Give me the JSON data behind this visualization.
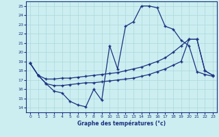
{
  "title": "Graphe des températures (°c)",
  "bg_color": "#cceef0",
  "line_color": "#1a3080",
  "grid_color": "#aad8dc",
  "xlim": [
    -0.5,
    23.5
  ],
  "ylim": [
    13.5,
    25.5
  ],
  "xticks": [
    0,
    1,
    2,
    3,
    4,
    5,
    6,
    7,
    8,
    9,
    10,
    11,
    12,
    13,
    14,
    15,
    16,
    17,
    18,
    19,
    20,
    21,
    22,
    23
  ],
  "yticks": [
    14,
    15,
    16,
    17,
    18,
    19,
    20,
    21,
    22,
    23,
    24,
    25
  ],
  "curve1_x": [
    0,
    1,
    2,
    3,
    4,
    5,
    6,
    7,
    8,
    9,
    10,
    11,
    12,
    13,
    14,
    15,
    16,
    17,
    18,
    19,
    20,
    21,
    22,
    23
  ],
  "curve1_y": [
    18.8,
    17.5,
    16.6,
    15.8,
    15.6,
    14.7,
    14.3,
    14.1,
    16.0,
    14.8,
    20.7,
    18.2,
    22.8,
    23.3,
    25.0,
    25.0,
    24.8,
    22.8,
    22.5,
    21.3,
    20.7,
    17.9,
    17.6,
    17.4
  ],
  "curve2_x": [
    0,
    1,
    2,
    3,
    4,
    5,
    6,
    7,
    8,
    9,
    10,
    11,
    12,
    13,
    14,
    15,
    16,
    17,
    18,
    19,
    20,
    21,
    22,
    23
  ],
  "curve2_y": [
    18.8,
    17.5,
    17.1,
    17.1,
    17.2,
    17.2,
    17.3,
    17.4,
    17.5,
    17.6,
    17.7,
    17.8,
    18.0,
    18.2,
    18.4,
    18.7,
    19.0,
    19.4,
    20.0,
    20.7,
    21.4,
    21.4,
    18.0,
    17.5
  ],
  "curve3_x": [
    0,
    1,
    2,
    3,
    4,
    5,
    6,
    7,
    8,
    9,
    10,
    11,
    12,
    13,
    14,
    15,
    16,
    17,
    18,
    19,
    20,
    21,
    22,
    23
  ],
  "curve3_y": [
    18.8,
    17.5,
    16.6,
    16.4,
    16.4,
    16.5,
    16.6,
    16.7,
    16.7,
    16.8,
    16.9,
    17.0,
    17.1,
    17.2,
    17.4,
    17.6,
    17.9,
    18.2,
    18.6,
    19.0,
    21.4,
    21.4,
    18.0,
    17.5
  ]
}
